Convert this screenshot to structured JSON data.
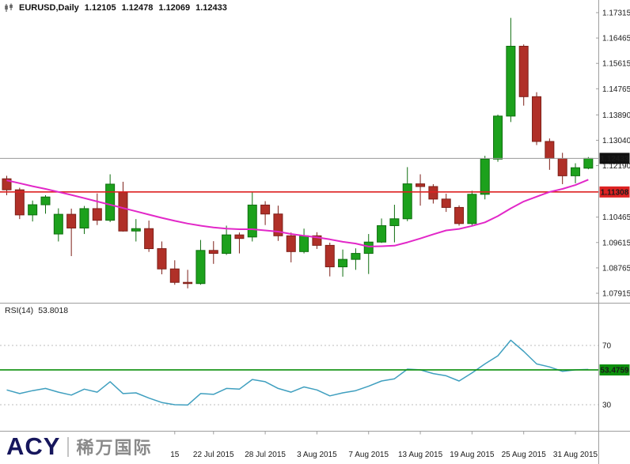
{
  "header": {
    "symbol": "EURUSD,Daily",
    "open": "1.12105",
    "high": "1.12478",
    "low": "1.12069",
    "close": "1.12433"
  },
  "indicator": {
    "label": "RSI(14)",
    "value": "53.8018"
  },
  "tags": {
    "current_price": "1.12433",
    "support_line": "1.11308",
    "rsi_line": "53.4759"
  },
  "logo": {
    "brand": "ACY",
    "cn": "稀万国际"
  },
  "colors": {
    "bull": "#1ca11c",
    "bull_border": "#0f6e0f",
    "bear": "#b03028",
    "bear_border": "#7d1f18",
    "ma": "#e228c8",
    "support_line": "#dd2222",
    "current_line": "#9a9a9a",
    "rsi": "#3f9fbf",
    "rsi_hline": "#0c8f0c",
    "tag_current_bg": "#111111",
    "tag_support_bg": "#dd2222",
    "tag_rsi_bg": "#0c8f0c",
    "separator": "#9e9e9e",
    "level_line": "#bdbdbd",
    "axis_text": "#1a1a1a"
  },
  "chart_data": [
    {
      "type": "candlestick",
      "title": "EURUSD Daily",
      "x": [
        "2015-06-30",
        "2015-07-01",
        "2015-07-02",
        "2015-07-03",
        "2015-07-06",
        "2015-07-07",
        "2015-07-08",
        "2015-07-09",
        "2015-07-10",
        "2015-07-13",
        "2015-07-14",
        "2015-07-15",
        "2015-07-16",
        "2015-07-17",
        "2015-07-20",
        "2015-07-21",
        "2015-07-22",
        "2015-07-23",
        "2015-07-24",
        "2015-07-27",
        "2015-07-28",
        "2015-07-29",
        "2015-07-30",
        "2015-07-31",
        "2015-08-03",
        "2015-08-04",
        "2015-08-05",
        "2015-08-06",
        "2015-08-07",
        "2015-08-10",
        "2015-08-11",
        "2015-08-12",
        "2015-08-13",
        "2015-08-14",
        "2015-08-17",
        "2015-08-18",
        "2015-08-19",
        "2015-08-20",
        "2015-08-21",
        "2015-08-24",
        "2015-08-25",
        "2015-08-26",
        "2015-08-27",
        "2015-08-28",
        "2015-08-31",
        "2015-09-01"
      ],
      "open": [
        1.1175,
        1.1138,
        1.1054,
        1.1088,
        1.099,
        1.1056,
        1.101,
        1.1075,
        1.1036,
        1.113,
        1.1,
        1.1008,
        1.0941,
        1.0873,
        1.0828,
        1.0824,
        1.0935,
        1.0925,
        1.0987,
        1.098,
        1.1087,
        1.1057,
        1.0984,
        1.0931,
        1.0984,
        1.0952,
        1.088,
        1.0905,
        1.0925,
        1.0963,
        1.1018,
        1.1041,
        1.1158,
        1.1149,
        1.1107,
        1.1079,
        1.1025,
        1.1123,
        1.1241,
        1.1385,
        1.1619,
        1.145,
        1.13,
        1.1243,
        1.1185,
        1.12105
      ],
      "high": [
        1.1185,
        1.1145,
        1.1102,
        1.112,
        1.1076,
        1.1075,
        1.1084,
        1.1126,
        1.119,
        1.1165,
        1.104,
        1.1035,
        1.0965,
        1.0902,
        1.087,
        1.097,
        1.0966,
        1.1018,
        1.0995,
        1.1129,
        1.11,
        1.1085,
        1.0995,
        1.1008,
        1.0996,
        1.0961,
        1.0938,
        1.0942,
        1.099,
        1.1042,
        1.1088,
        1.1214,
        1.119,
        1.1157,
        1.1125,
        1.1086,
        1.1135,
        1.1252,
        1.139,
        1.1714,
        1.1625,
        1.1465,
        1.131,
        1.1262,
        1.1227,
        1.12478
      ],
      "low": [
        1.112,
        1.104,
        1.1032,
        1.1058,
        1.0965,
        1.0916,
        1.099,
        1.102,
        1.103,
        1.0998,
        1.0965,
        1.093,
        1.0855,
        1.082,
        1.0808,
        1.082,
        1.089,
        1.092,
        1.0925,
        1.0965,
        1.102,
        1.0967,
        1.0895,
        1.0925,
        1.094,
        1.0848,
        1.0847,
        1.087,
        1.0856,
        1.096,
        1.0962,
        1.1033,
        1.1085,
        1.1092,
        1.1064,
        1.1018,
        1.1017,
        1.1106,
        1.1232,
        1.1365,
        1.142,
        1.1288,
        1.1205,
        1.1157,
        1.116,
        1.12069
      ],
      "close": [
        1.1138,
        1.1054,
        1.1088,
        1.1114,
        1.1056,
        1.101,
        1.1075,
        1.1036,
        1.1157,
        1.1,
        1.1008,
        1.0941,
        1.0873,
        1.0828,
        1.0824,
        1.0935,
        1.0925,
        1.0987,
        1.0975,
        1.1087,
        1.1057,
        1.0984,
        1.0931,
        1.0984,
        1.0952,
        1.088,
        1.0905,
        1.0925,
        1.0963,
        1.1018,
        1.1041,
        1.1158,
        1.1149,
        1.1107,
        1.1079,
        1.1025,
        1.1123,
        1.1241,
        1.1385,
        1.1619,
        1.145,
        1.13,
        1.1243,
        1.1185,
        1.1212,
        1.12433
      ],
      "ma_overlay": {
        "name": "moving-average",
        "values": [
          1.117,
          1.116,
          1.115,
          1.1141,
          1.1131,
          1.1121,
          1.111,
          1.1099,
          1.1088,
          1.1077,
          1.1066,
          1.1055,
          1.1044,
          1.1034,
          1.1025,
          1.1018,
          1.1012,
          1.1008,
          1.1006,
          1.1006,
          1.1002,
          1.0998,
          1.099,
          1.0984,
          1.0979,
          1.0972,
          1.0964,
          1.0958,
          1.0948,
          1.0949,
          1.0951,
          1.0962,
          1.0975,
          1.0989,
          1.1002,
          1.1007,
          1.1017,
          1.1029,
          1.105,
          1.1076,
          1.1099,
          1.1115,
          1.1131,
          1.1141,
          1.1154,
          1.1172
        ]
      },
      "hlines": [
        {
          "name": "support-line",
          "value": 1.11308
        },
        {
          "name": "current-price-line",
          "value": 1.12433
        }
      ],
      "ylim": [
        1.076,
        1.176
      ],
      "y_axis_labels": [
        "1.17315",
        "1.16465",
        "1.15615",
        "1.14765",
        "1.13890",
        "1.13040",
        "1.12190",
        "1.10465",
        "1.09615",
        "1.08765",
        "1.07915"
      ],
      "x_axis_labels": [
        {
          "text": "15",
          "bar": 13
        },
        {
          "text": "22 Jul 2015",
          "bar": 16
        },
        {
          "text": "28 Jul 2015",
          "bar": 20
        },
        {
          "text": "3 Aug 2015",
          "bar": 24
        },
        {
          "text": "7 Aug 2015",
          "bar": 28
        },
        {
          "text": "13 Aug 2015",
          "bar": 32
        },
        {
          "text": "19 Aug 2015",
          "bar": 36
        },
        {
          "text": "25 Aug 2015",
          "bar": 40
        },
        {
          "text": "31 Aug 2015",
          "bar": 44
        }
      ]
    },
    {
      "type": "line",
      "title": "RSI(14)",
      "last_value": 53.8018,
      "values": [
        40,
        37.5,
        39.5,
        41,
        38.5,
        36.5,
        40.5,
        38.5,
        45.5,
        37.5,
        38,
        34.5,
        31.5,
        30,
        29.8,
        37.5,
        37,
        41,
        40.5,
        47,
        45.5,
        41,
        38.5,
        42,
        40,
        36,
        38,
        39.5,
        42.5,
        46,
        47.5,
        54,
        53.5,
        51,
        49.5,
        46,
        51.5,
        57.5,
        63,
        73.5,
        66,
        57.5,
        55.5,
        52.5,
        53.5,
        53.8
      ],
      "levels": [
        "70",
        "30"
      ],
      "hline": {
        "name": "rsi-horizontal-line",
        "value": 53.4759
      },
      "ylim": [
        25,
        82
      ]
    }
  ]
}
